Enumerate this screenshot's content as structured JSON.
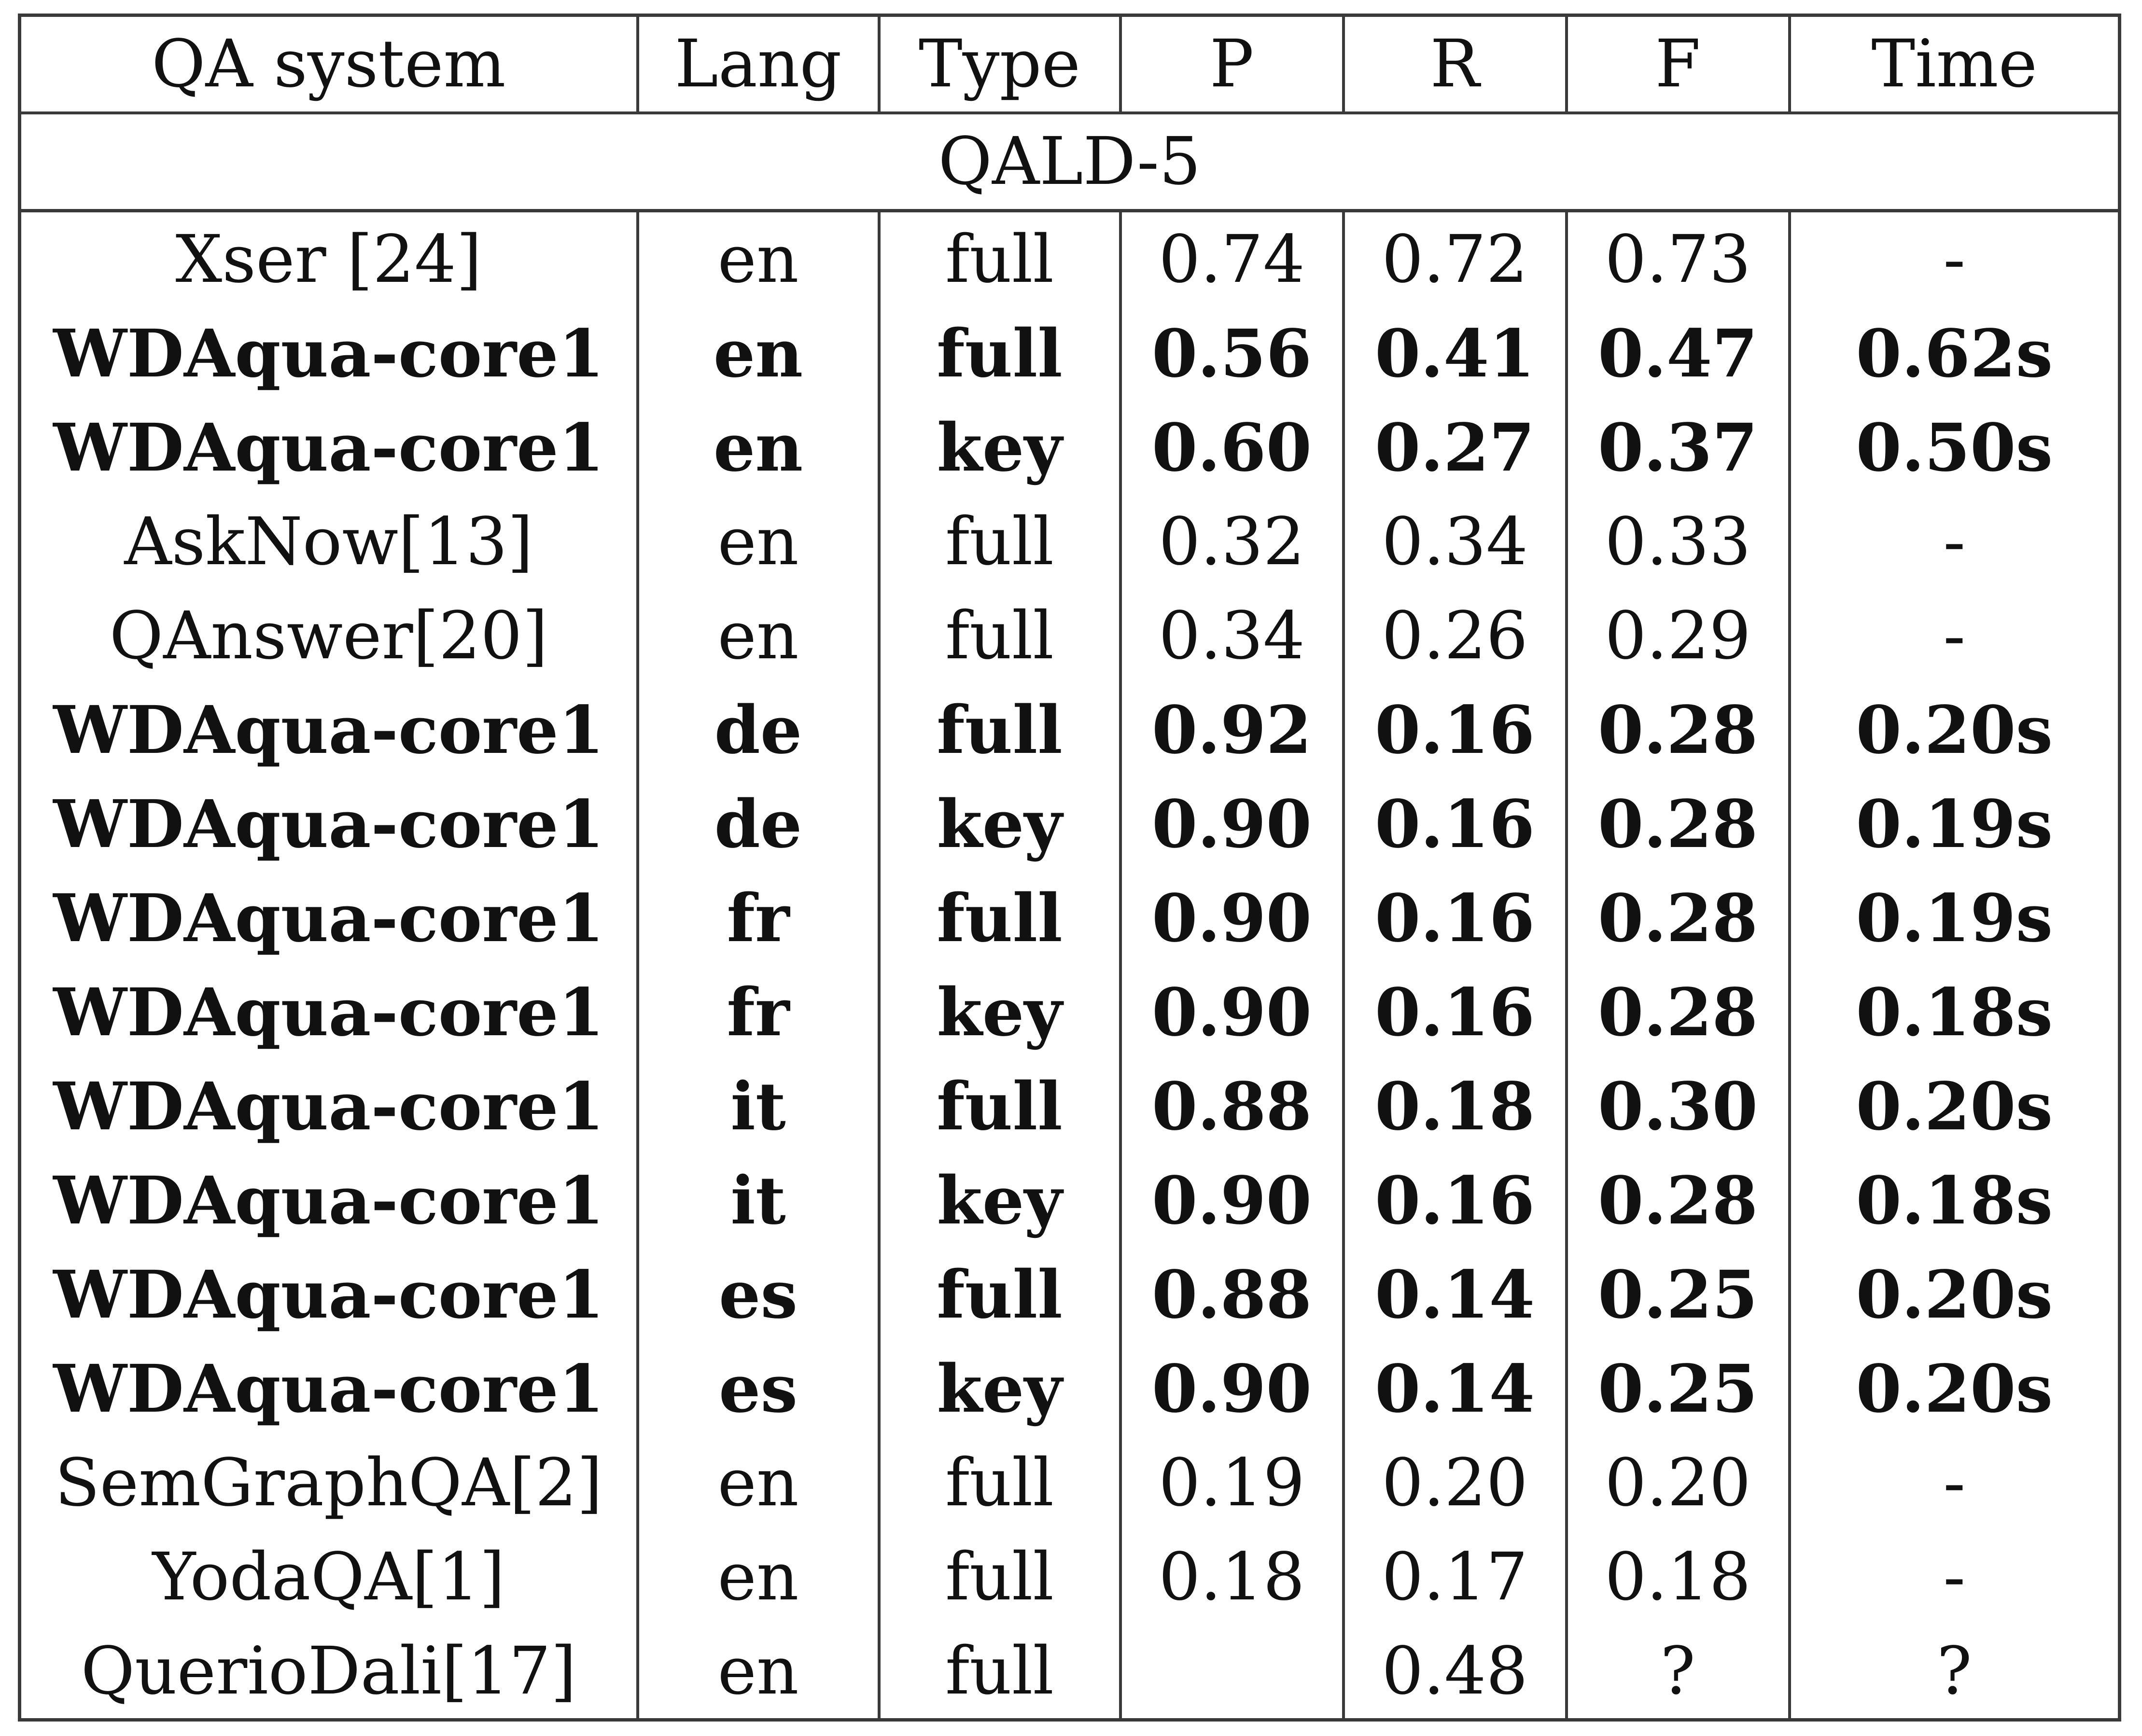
{
  "table": {
    "headers": [
      "QA system",
      "Lang",
      "Type",
      "P",
      "R",
      "F",
      "Time"
    ],
    "section_title": "QALD-5",
    "rows": [
      {
        "system": "Xser [24]",
        "lang": "en",
        "type": "full",
        "p": "0.74",
        "r": "0.72",
        "f": "0.73",
        "time": "-",
        "bold": false
      },
      {
        "system": "WDAqua-core1",
        "lang": "en",
        "type": "full",
        "p": "0.56",
        "r": "0.41",
        "f": "0.47",
        "time": "0.62s",
        "bold": true
      },
      {
        "system": "WDAqua-core1",
        "lang": "en",
        "type": "key",
        "p": "0.60",
        "r": "0.27",
        "f": "0.37",
        "time": "0.50s",
        "bold": true
      },
      {
        "system": "AskNow[13]",
        "lang": "en",
        "type": "full",
        "p": "0.32",
        "r": "0.34",
        "f": "0.33",
        "time": "-",
        "bold": false
      },
      {
        "system": "QAnswer[20]",
        "lang": "en",
        "type": "full",
        "p": "0.34",
        "r": "0.26",
        "f": "0.29",
        "time": "-",
        "bold": false
      },
      {
        "system": "WDAqua-core1",
        "lang": "de",
        "type": "full",
        "p": "0.92",
        "r": "0.16",
        "f": "0.28",
        "time": "0.20s",
        "bold": true
      },
      {
        "system": "WDAqua-core1",
        "lang": "de",
        "type": "key",
        "p": "0.90",
        "r": "0.16",
        "f": "0.28",
        "time": "0.19s",
        "bold": true
      },
      {
        "system": "WDAqua-core1",
        "lang": "fr",
        "type": "full",
        "p": "0.90",
        "r": "0.16",
        "f": "0.28",
        "time": "0.19s",
        "bold": true
      },
      {
        "system": "WDAqua-core1",
        "lang": "fr",
        "type": "key",
        "p": "0.90",
        "r": "0.16",
        "f": "0.28",
        "time": "0.18s",
        "bold": true
      },
      {
        "system": "WDAqua-core1",
        "lang": "it",
        "type": "full",
        "p": "0.88",
        "r": "0.18",
        "f": "0.30",
        "time": "0.20s",
        "bold": true
      },
      {
        "system": "WDAqua-core1",
        "lang": "it",
        "type": "key",
        "p": "0.90",
        "r": "0.16",
        "f": "0.28",
        "time": "0.18s",
        "bold": true
      },
      {
        "system": "WDAqua-core1",
        "lang": "es",
        "type": "full",
        "p": "0.88",
        "r": "0.14",
        "f": "0.25",
        "time": "0.20s",
        "bold": true
      },
      {
        "system": "WDAqua-core1",
        "lang": "es",
        "type": "key",
        "p": "0.90",
        "r": "0.14",
        "f": "0.25",
        "time": "0.20s",
        "bold": true
      },
      {
        "system": "SemGraphQA[2]",
        "lang": "en",
        "type": "full",
        "p": "0.19",
        "r": "0.20",
        "f": "0.20",
        "time": "-",
        "bold": false
      },
      {
        "system": "YodaQA[1]",
        "lang": "en",
        "type": "full",
        "p": "0.18",
        "r": "0.17",
        "f": "0.18",
        "time": "-",
        "bold": false
      },
      {
        "system": "QuerioDali[17]",
        "lang": "en",
        "type": "full",
        "p": "",
        "r": "0.48",
        "f": "?",
        "time": "?",
        "bold": false
      }
    ]
  }
}
